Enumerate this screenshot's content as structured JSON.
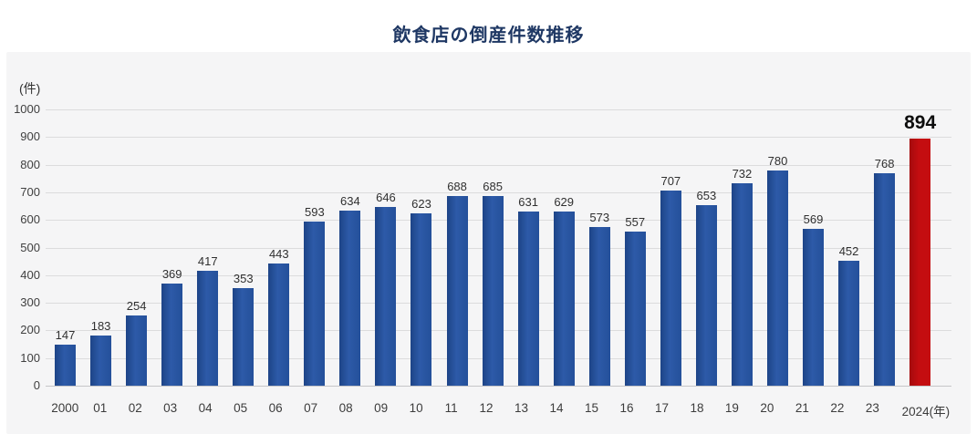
{
  "title": "飲食店の倒産件数推移",
  "panel": {
    "unit_label": "(件)",
    "year_suffix": "(年)"
  },
  "colors": {
    "title": "#1f3864",
    "panel_bg": "#f5f5f6",
    "grid": "#dcdcdd",
    "axis": "#c6c6c8",
    "bar": "#24509a",
    "bar_dark": "#1d4487",
    "bar_light": "#2d5aa8",
    "highlight": "#c40d10",
    "highlight_dark": "#a50a0d"
  },
  "chart_data": {
    "type": "bar",
    "title": "飲食店の倒産件数推移",
    "ylabel": "(件)",
    "xlabel": "(年)",
    "ylim": [
      0,
      1000
    ],
    "y_ticks": [
      0,
      100,
      200,
      300,
      400,
      500,
      600,
      700,
      800,
      900,
      1000
    ],
    "grid": true,
    "legend": false,
    "categories": [
      "2000",
      "01",
      "02",
      "03",
      "04",
      "05",
      "06",
      "07",
      "08",
      "09",
      "10",
      "11",
      "12",
      "13",
      "14",
      "15",
      "16",
      "17",
      "18",
      "19",
      "20",
      "21",
      "22",
      "23",
      "2024"
    ],
    "values": [
      147,
      183,
      254,
      369,
      417,
      353,
      443,
      593,
      634,
      646,
      623,
      688,
      685,
      631,
      629,
      573,
      557,
      707,
      653,
      732,
      780,
      569,
      452,
      768,
      894
    ],
    "highlight_index": 24,
    "highlight_color": "#c40d10",
    "bar_color": "#24509a"
  }
}
